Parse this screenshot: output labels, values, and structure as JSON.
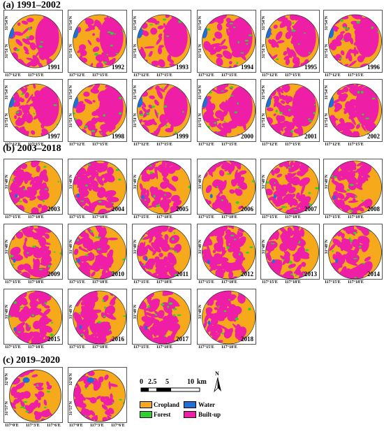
{
  "sections": [
    {
      "id": "a",
      "title": "(a) 1991–2002",
      "lon_labels": [
        "117°12'E",
        "117°15'E"
      ],
      "lat_labels": [
        "31°54'N",
        "31°51'N"
      ],
      "years": [
        "1991",
        "1992",
        "1993",
        "1994",
        "1995",
        "1996",
        "1997",
        "1998",
        "1999",
        "2000",
        "2001",
        "2002"
      ]
    },
    {
      "id": "b",
      "title": "(b) 2003–2018",
      "lon_labels": [
        "117°15'E",
        "117°18'E"
      ],
      "lat_labels": [
        "31°48'N"
      ],
      "years": [
        "2003",
        "2004",
        "2005",
        "2006",
        "2007",
        "2008",
        "2009",
        "2010",
        "2011",
        "2012",
        "2013",
        "2014",
        "2015",
        "2016",
        "2017",
        "2018"
      ]
    },
    {
      "id": "c",
      "title": "(c) 2019–2020",
      "lon_labels": [
        "117°0'E",
        "117°3'E",
        "117°6'E"
      ],
      "lat_labels": [
        "32°0'N",
        "31°57'N"
      ],
      "years": [
        "",
        ""
      ]
    }
  ],
  "legend": [
    {
      "label": "Cropland",
      "color": "#f7a91c"
    },
    {
      "label": "Water",
      "color": "#1f6fd6"
    },
    {
      "label": "Forest",
      "color": "#2ed12e"
    },
    {
      "label": "Built-up",
      "color": "#ee1fa6"
    }
  ],
  "scale_bar": {
    "ticks": [
      "0",
      "2.5",
      "5",
      "10"
    ],
    "unit": "km"
  },
  "north_arrow": {
    "label": "N"
  }
}
